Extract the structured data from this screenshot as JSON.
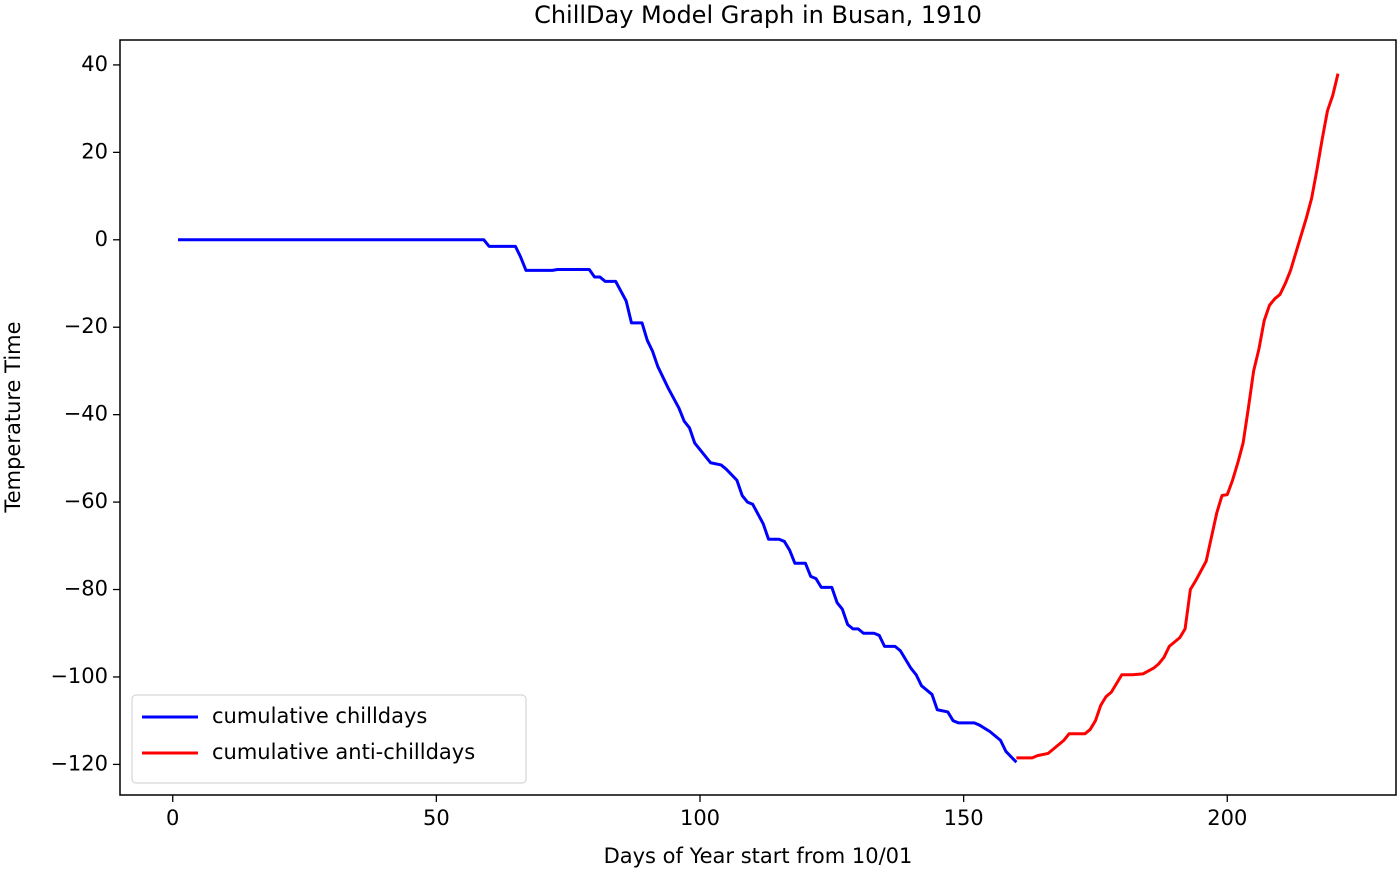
{
  "chart_data": {
    "type": "line",
    "title": "ChillDay Model Graph in Busan, 1910",
    "x_label": "Days of Year start from 10/01",
    "y_label": "Temperature Time",
    "xlim": [
      -10,
      232
    ],
    "ylim": [
      -127,
      45.7
    ],
    "xticks": [
      0,
      50,
      100,
      150,
      200
    ],
    "yticks": [
      40,
      20,
      0,
      {
        "value": -20,
        "label": "−20"
      },
      {
        "value": -40,
        "label": "−40"
      },
      {
        "value": -60,
        "label": "−60"
      },
      {
        "value": -80,
        "label": "−80"
      },
      {
        "value": -100,
        "label": "−100"
      },
      {
        "value": -120,
        "label": "−120"
      }
    ],
    "legend": "lower left",
    "series": [
      {
        "name": "cumulative chilldays",
        "color": "#0000ff",
        "x": [
          1,
          59,
          60,
          65,
          66,
          67,
          72,
          73,
          79,
          80,
          81,
          82,
          84,
          86,
          87,
          89,
          90,
          91,
          92,
          94,
          96,
          97,
          98,
          99,
          101,
          102,
          104,
          105,
          107,
          108,
          109,
          110,
          112,
          113,
          115,
          116,
          117,
          118,
          120,
          121,
          122,
          123,
          125,
          126,
          127,
          128,
          129,
          130,
          131,
          133,
          134,
          135,
          137,
          138,
          139,
          140,
          141,
          142,
          144,
          145,
          147,
          148,
          149,
          152,
          153,
          155,
          157,
          158,
          160
        ],
        "values": [
          0,
          0,
          -1.5,
          -1.5,
          -4,
          -7,
          -7,
          -6.8,
          -6.8,
          -8.5,
          -8.5,
          -9.5,
          -9.5,
          -14,
          -19,
          -19,
          -23,
          -25.5,
          -29,
          -34,
          -38.5,
          -41.5,
          -43,
          -46.5,
          -49.5,
          -51,
          -51.5,
          -52.5,
          -55,
          -58.5,
          -60,
          -60.5,
          -65,
          -68.5,
          -68.5,
          -69,
          -71,
          -74,
          -74,
          -77,
          -77.5,
          -79.5,
          -79.5,
          -83,
          -84.5,
          -88,
          -89,
          -89,
          -90,
          -90,
          -90.5,
          -93,
          -93,
          -94,
          -96,
          -98,
          -99.5,
          -102,
          -104,
          -107.5,
          -108,
          -110,
          -110.5,
          -110.5,
          -111,
          -112.5,
          -114.5,
          -117,
          -119.5
        ]
      },
      {
        "name": "cumulative anti-chilldays",
        "color": "#ff0000",
        "x": [
          160,
          163,
          164,
          166,
          167,
          169,
          170,
          173,
          174,
          175,
          176,
          177,
          178,
          179,
          180,
          182,
          184,
          186,
          187,
          188,
          189,
          191,
          192,
          193,
          194,
          196,
          197,
          198,
          199,
          200,
          201,
          202,
          203,
          204,
          205,
          206,
          207,
          208,
          209,
          210,
          211,
          212,
          213,
          214,
          215,
          216,
          217,
          218,
          219,
          220,
          221
        ],
        "values": [
          -118.5,
          -118.5,
          -118,
          -117.5,
          -116.5,
          -114.5,
          -113,
          -113,
          -112,
          -110,
          -106.5,
          -104.5,
          -103.5,
          -101.5,
          -99.5,
          -99.5,
          -99.3,
          -98,
          -97,
          -95.5,
          -93,
          -91,
          -89,
          -80,
          -78,
          -73.5,
          -68,
          -62.5,
          -58.5,
          -58.3,
          -55,
          -51,
          -46.5,
          -38.5,
          -30,
          -25,
          -18.5,
          -15,
          -13.5,
          -12.5,
          -10,
          -7,
          -3,
          1,
          5,
          9.5,
          16,
          23,
          29.5,
          33,
          38
        ]
      }
    ]
  }
}
